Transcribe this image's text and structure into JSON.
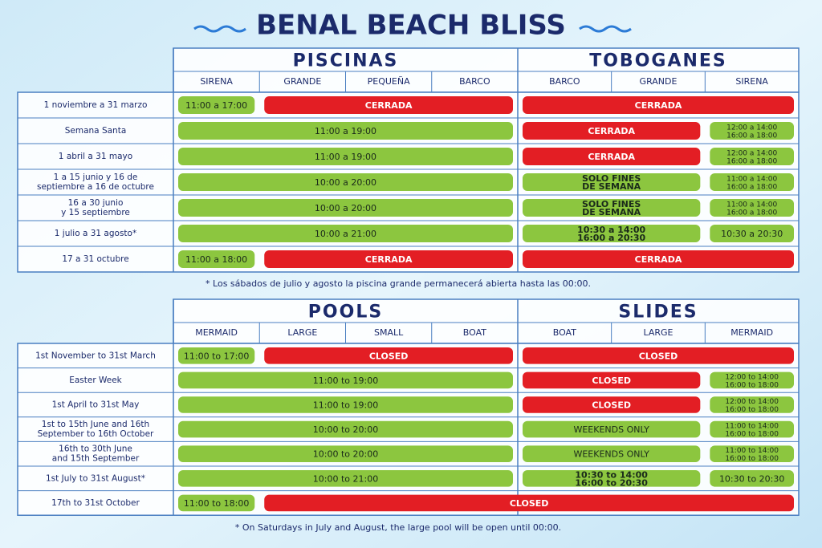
{
  "title": "BENAL BEACH BLISS",
  "tables": [
    {
      "groups": [
        {
          "title": "PISCINAS",
          "columns": [
            "SIRENA",
            "GRANDE",
            "PEQUEÑA",
            "BARCO"
          ]
        },
        {
          "title": "TOBOGANES",
          "columns": [
            "BARCO",
            "GRANDE",
            "SIRENA"
          ]
        }
      ],
      "rows": [
        {
          "label": [
            "1 noviembre a 31 marzo"
          ],
          "cells": [
            {
              "text": [
                "11:00 a 17:00"
              ],
              "span": 1,
              "color": "#8cc63f"
            },
            {
              "text": [
                "CERRADA"
              ],
              "span": 3,
              "color": "#e31e24"
            },
            {
              "text": [
                "CERRADA"
              ],
              "span": 3,
              "color": "#e31e24"
            }
          ]
        },
        {
          "label": [
            "Semana Santa"
          ],
          "cells": [
            {
              "text": [
                "11:00 a 19:00"
              ],
              "span": 4,
              "color": "#8cc63f"
            },
            {
              "text": [
                "CERRADA"
              ],
              "span": 2,
              "color": "#e31e24"
            },
            {
              "text": [
                "12:00 a 14:00",
                "16:00 a 18:00"
              ],
              "span": 1,
              "color": "#8cc63f"
            }
          ]
        },
        {
          "label": [
            "1 abril a 31 mayo"
          ],
          "cells": [
            {
              "text": [
                "11:00 a 19:00"
              ],
              "span": 4,
              "color": "#8cc63f"
            },
            {
              "text": [
                "CERRADA"
              ],
              "span": 2,
              "color": "#e31e24"
            },
            {
              "text": [
                "12:00 a 14:00",
                "16:00 a 18:00"
              ],
              "span": 1,
              "color": "#8cc63f"
            }
          ]
        },
        {
          "label": [
            "1 a 15 junio y 16 de",
            "septiembre a 16 de octubre"
          ],
          "cells": [
            {
              "text": [
                "10:00 a 20:00"
              ],
              "span": 4,
              "color": "#8cc63f"
            },
            {
              "text": [
                "SOLO FINES",
                "DE SEMANA"
              ],
              "span": 2,
              "color": "#8cc63f"
            },
            {
              "text": [
                "11:00 a 14:00",
                "16:00 a 18:00"
              ],
              "span": 1,
              "color": "#8cc63f"
            }
          ]
        },
        {
          "label": [
            "16 a 30 junio",
            "y 15 septiembre"
          ],
          "cells": [
            {
              "text": [
                "10:00 a 20:00"
              ],
              "span": 4,
              "color": "#8cc63f"
            },
            {
              "text": [
                "SOLO FINES",
                "DE SEMANA"
              ],
              "span": 2,
              "color": "#8cc63f"
            },
            {
              "text": [
                "11:00 a 14:00",
                "16:00 a 18:00"
              ],
              "span": 1,
              "color": "#8cc63f"
            }
          ]
        },
        {
          "label": [
            "1 julio a 31 agosto*"
          ],
          "cells": [
            {
              "text": [
                "10:00 a 21:00"
              ],
              "span": 4,
              "color": "#8cc63f"
            },
            {
              "text": [
                "10:30 a 14:00",
                "16:00 a 20:30"
              ],
              "span": 2,
              "color": "#8cc63f"
            },
            {
              "text": [
                "10:30 a 20:30"
              ],
              "span": 1,
              "color": "#8cc63f"
            }
          ]
        },
        {
          "label": [
            "17 a 31 octubre"
          ],
          "cells": [
            {
              "text": [
                "11:00 a 18:00"
              ],
              "span": 1,
              "color": "#8cc63f"
            },
            {
              "text": [
                "CERRADA"
              ],
              "span": 3,
              "color": "#e31e24"
            },
            {
              "text": [
                "CERRADA"
              ],
              "span": 3,
              "color": "#e31e24"
            }
          ]
        }
      ],
      "note": "* Los sábados de julio y agosto la piscina grande permanecerá abierta hasta las 00:00."
    },
    {
      "groups": [
        {
          "title": "POOLS",
          "columns": [
            "MERMAID",
            "LARGE",
            "SMALL",
            "BOAT"
          ]
        },
        {
          "title": "SLIDES",
          "columns": [
            "BOAT",
            "LARGE",
            "MERMAID"
          ]
        }
      ],
      "rows": [
        {
          "label": [
            "1st November to 31st March"
          ],
          "cells": [
            {
              "text": [
                "11:00 to 17:00"
              ],
              "span": 1,
              "color": "#8cc63f"
            },
            {
              "text": [
                "CLOSED"
              ],
              "span": 3,
              "color": "#e31e24"
            },
            {
              "text": [
                "CLOSED"
              ],
              "span": 3,
              "color": "#e31e24"
            }
          ]
        },
        {
          "label": [
            "Easter Week"
          ],
          "cells": [
            {
              "text": [
                "11:00 to 19:00"
              ],
              "span": 4,
              "color": "#8cc63f"
            },
            {
              "text": [
                "CLOSED"
              ],
              "span": 2,
              "color": "#e31e24"
            },
            {
              "text": [
                "12:00 to 14:00",
                "16:00 to 18:00"
              ],
              "span": 1,
              "color": "#8cc63f"
            }
          ]
        },
        {
          "label": [
            "1st April to 31st May"
          ],
          "cells": [
            {
              "text": [
                "11:00 to 19:00"
              ],
              "span": 4,
              "color": "#8cc63f"
            },
            {
              "text": [
                "CLOSED"
              ],
              "span": 2,
              "color": "#e31e24"
            },
            {
              "text": [
                "12:00 to 14:00",
                "16:00 to 18:00"
              ],
              "span": 1,
              "color": "#8cc63f"
            }
          ]
        },
        {
          "label": [
            "1st to 15th June and 16th",
            "September to 16th October"
          ],
          "cells": [
            {
              "text": [
                "10:00 to 20:00"
              ],
              "span": 4,
              "color": "#8cc63f"
            },
            {
              "text": [
                "WEEKENDS ONLY"
              ],
              "span": 2,
              "color": "#8cc63f"
            },
            {
              "text": [
                "11:00 to 14:00",
                "16:00 to 18:00"
              ],
              "span": 1,
              "color": "#8cc63f"
            }
          ]
        },
        {
          "label": [
            "16th to 30th June",
            "and 15th September"
          ],
          "cells": [
            {
              "text": [
                "10:00 to 20:00"
              ],
              "span": 4,
              "color": "#8cc63f"
            },
            {
              "text": [
                "WEEKENDS ONLY"
              ],
              "span": 2,
              "color": "#8cc63f"
            },
            {
              "text": [
                "11:00 to 14:00",
                "16:00 to 18:00"
              ],
              "span": 1,
              "color": "#8cc63f"
            }
          ]
        },
        {
          "label": [
            "1st July to 31st August*"
          ],
          "cells": [
            {
              "text": [
                "10:00 to 21:00"
              ],
              "span": 4,
              "color": "#8cc63f"
            },
            {
              "text": [
                "10:30 to 14:00",
                "16:00 to 20:30"
              ],
              "span": 2,
              "color": "#8cc63f"
            },
            {
              "text": [
                "10:30 to 20:30"
              ],
              "span": 1,
              "color": "#8cc63f"
            }
          ]
        },
        {
          "label": [
            "17th to 31st October"
          ],
          "cells": [
            {
              "text": [
                "11:00 to 18:00"
              ],
              "span": 1,
              "color": "#8cc63f"
            },
            {
              "text": [
                "CLOSED"
              ],
              "span": 6,
              "color": "#e31e24"
            }
          ]
        }
      ],
      "note": "* On Saturdays in July and August, the large pool will be open until 00:00."
    }
  ]
}
